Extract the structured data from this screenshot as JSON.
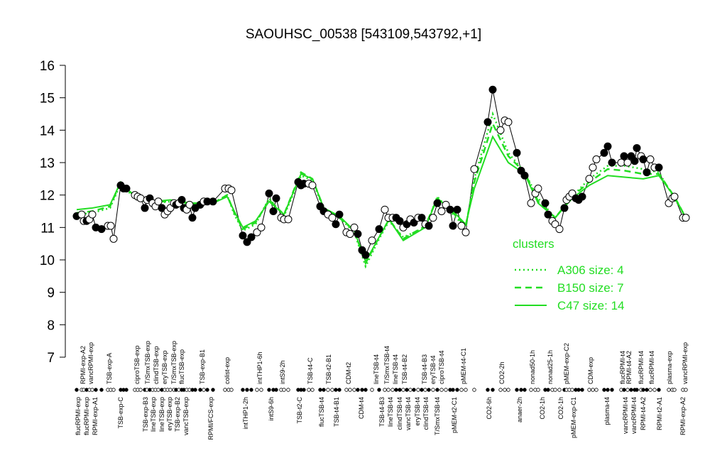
{
  "chart_data": {
    "type": "line",
    "title": "SAOUHSC_00538 [543109,543792,+1]",
    "xlim": [
      100,
      975
    ],
    "ylim": [
      7,
      16
    ],
    "yticks": [
      7,
      8,
      9,
      10,
      11,
      12,
      13,
      14,
      15,
      16
    ],
    "points": {
      "x": [
        108,
        115,
        118,
        122,
        126,
        130,
        135,
        143,
        152,
        156,
        160,
        170,
        174,
        178,
        190,
        194,
        198,
        204,
        207,
        211,
        215,
        219,
        223,
        228,
        232,
        236,
        240,
        245,
        248,
        252,
        256,
        259,
        263,
        267,
        271,
        275,
        282,
        287,
        292,
        300,
        317,
        322,
        326,
        342,
        348,
        354,
        362,
        368,
        379,
        385,
        389,
        396,
        400,
        406,
        420,
        424,
        428,
        435,
        440,
        451,
        456,
        462,
        468,
        473,
        478,
        488,
        493,
        499,
        504,
        510,
        515,
        524,
        534,
        542,
        547,
        553,
        558,
        563,
        568,
        573,
        578,
        583,
        589,
        594,
        599,
        604,
        610,
        616,
        622,
        628,
        634,
        638,
        644,
        650,
        656,
        668,
        687,
        694,
        705,
        711,
        716,
        728,
        734,
        739,
        748,
        754,
        758,
        768,
        772,
        778,
        782,
        788,
        795,
        798,
        802,
        806,
        811,
        815,
        820,
        830,
        835,
        840,
        851,
        856,
        862,
        875,
        879,
        884,
        889,
        894,
        897,
        903,
        906,
        911,
        916,
        922,
        928,
        942,
        947,
        950,
        962,
        966
      ],
      "values": [
        11.35,
        11.4,
        11.2,
        11.2,
        11.25,
        11.4,
        11.0,
        10.95,
        11.05,
        11.05,
        10.65,
        12.3,
        12.2,
        12.2,
        12.0,
        11.95,
        11.9,
        11.6,
        11.85,
        11.9,
        11.75,
        11.65,
        11.8,
        11.6,
        11.4,
        11.5,
        11.6,
        11.75,
        11.7,
        11.75,
        11.85,
        11.6,
        11.55,
        11.7,
        11.3,
        11.6,
        11.7,
        11.8,
        11.8,
        11.8,
        12.2,
        12.2,
        12.15,
        10.75,
        10.55,
        10.7,
        10.85,
        11.0,
        12.05,
        11.5,
        11.9,
        11.3,
        11.25,
        11.25,
        12.4,
        12.3,
        12.35,
        12.35,
        12.3,
        11.65,
        11.5,
        11.4,
        11.3,
        11.1,
        11.4,
        10.85,
        10.8,
        11.0,
        10.8,
        10.3,
        10.15,
        10.6,
        10.95,
        11.55,
        11.3,
        11.3,
        11.3,
        11.2,
        11.0,
        11.1,
        11.25,
        11.15,
        11.3,
        11.3,
        11.1,
        11.05,
        11.3,
        11.75,
        11.5,
        11.7,
        11.55,
        11.05,
        11.55,
        11.05,
        10.85,
        12.8,
        14.25,
        15.25,
        14.0,
        14.3,
        14.25,
        13.3,
        12.75,
        12.6,
        11.75,
        12.05,
        12.2,
        11.75,
        11.4,
        11.2,
        11.1,
        10.95,
        11.6,
        11.85,
        11.95,
        12.05,
        11.9,
        11.85,
        11.95,
        12.5,
        12.85,
        13.1,
        13.3,
        13.5,
        13.0,
        13.0,
        13.2,
        13.0,
        13.2,
        13.05,
        13.45,
        13.2,
        13.1,
        12.7,
        13.1,
        12.85,
        12.85,
        11.75,
        11.9,
        11.95,
        11.3,
        11.3
      ],
      "filled": [
        true,
        false,
        false,
        true,
        false,
        false,
        true,
        true,
        false,
        false,
        false,
        true,
        true,
        true,
        false,
        false,
        false,
        true,
        false,
        true,
        false,
        false,
        false,
        true,
        false,
        false,
        false,
        false,
        true,
        false,
        true,
        true,
        false,
        false,
        true,
        true,
        true,
        false,
        true,
        true,
        false,
        false,
        false,
        true,
        true,
        true,
        false,
        false,
        true,
        true,
        true,
        false,
        false,
        false,
        true,
        true,
        true,
        false,
        false,
        true,
        true,
        false,
        false,
        true,
        true,
        false,
        false,
        false,
        true,
        true,
        true,
        false,
        true,
        false,
        false,
        false,
        true,
        true,
        false,
        true,
        false,
        true,
        false,
        true,
        false,
        true,
        false,
        true,
        false,
        false,
        true,
        true,
        true,
        false,
        false,
        false,
        true,
        true,
        false,
        false,
        false,
        true,
        true,
        true,
        false,
        false,
        false,
        true,
        true,
        false,
        false,
        false,
        true,
        false,
        false,
        false,
        true,
        true,
        true,
        false,
        false,
        false,
        true,
        true,
        true,
        false,
        true,
        false,
        true,
        true,
        true,
        false,
        true,
        true,
        false,
        false,
        true,
        false,
        false,
        false,
        false,
        false
      ]
    },
    "legend_title": "clusters",
    "series": [
      {
        "name": "A306 size: 4",
        "color": "#22dd22",
        "dash": "dotted",
        "x": [
          108,
          130,
          155,
          170,
          190,
          215,
          240,
          270,
          300,
          320,
          330,
          342,
          360,
          379,
          400,
          424,
          440,
          456,
          478,
          499,
          515,
          534,
          548,
          568,
          599,
          616,
          638,
          656,
          668,
          694,
          716,
          739,
          758,
          782,
          806,
          830,
          856,
          880,
          906,
          928,
          950,
          966
        ],
        "values": [
          11.4,
          11.45,
          11.6,
          12.35,
          11.9,
          11.75,
          11.8,
          11.7,
          11.75,
          12.0,
          11.4,
          10.9,
          11.1,
          11.9,
          11.35,
          12.6,
          12.45,
          11.55,
          11.3,
          10.85,
          9.8,
          10.65,
          11.2,
          10.7,
          11.0,
          11.95,
          11.4,
          11.0,
          12.5,
          14.5,
          13.3,
          12.7,
          11.9,
          11.3,
          11.95,
          12.5,
          12.9,
          12.9,
          12.8,
          12.7,
          11.9,
          11.3
        ]
      },
      {
        "name": "B150 size: 7",
        "color": "#22dd22",
        "dash": "dashed",
        "x": [
          108,
          130,
          155,
          170,
          190,
          215,
          240,
          270,
          300,
          320,
          330,
          342,
          360,
          379,
          400,
          424,
          440,
          456,
          478,
          499,
          515,
          534,
          548,
          568,
          599,
          616,
          638,
          656,
          668,
          694,
          716,
          739,
          758,
          782,
          806,
          830,
          856,
          880,
          906,
          928,
          950,
          966
        ],
        "values": [
          11.45,
          11.5,
          11.65,
          12.4,
          11.95,
          11.8,
          11.8,
          11.75,
          11.75,
          12.0,
          11.45,
          10.95,
          11.15,
          11.85,
          11.4,
          12.7,
          12.5,
          11.6,
          11.3,
          10.9,
          9.9,
          10.7,
          11.25,
          10.65,
          11.05,
          11.9,
          11.45,
          11.05,
          12.4,
          14.2,
          13.2,
          12.7,
          11.8,
          11.3,
          11.95,
          12.4,
          12.8,
          12.75,
          12.65,
          12.65,
          11.95,
          11.3
        ]
      },
      {
        "name": "C47 size: 14",
        "color": "#22dd22",
        "dash": "solid",
        "x": [
          108,
          130,
          155,
          170,
          190,
          215,
          240,
          270,
          300,
          320,
          330,
          342,
          360,
          379,
          400,
          424,
          440,
          456,
          478,
          499,
          515,
          534,
          548,
          568,
          599,
          616,
          638,
          656,
          668,
          694,
          716,
          739,
          758,
          782,
          806,
          830,
          856,
          880,
          906,
          928,
          950,
          966
        ],
        "values": [
          11.55,
          11.6,
          11.7,
          12.4,
          11.95,
          11.8,
          11.85,
          11.75,
          11.75,
          11.95,
          11.5,
          11.0,
          11.2,
          11.8,
          11.4,
          12.65,
          12.5,
          11.6,
          11.35,
          10.9,
          9.95,
          10.7,
          11.25,
          10.6,
          11.0,
          11.9,
          11.5,
          11.1,
          12.2,
          13.8,
          13.0,
          12.65,
          11.75,
          11.3,
          11.9,
          12.3,
          12.6,
          12.55,
          12.5,
          12.6,
          11.95,
          11.3
        ]
      }
    ],
    "top_labels": [
      {
        "label": "RPMI-exp-A2",
        "x": 117
      },
      {
        "label": "vancRPMI-exp",
        "x": 128
      },
      {
        "label": "TSB-exp-A",
        "x": 154
      },
      {
        "label": "ciproTSB-exp",
        "x": 193
      },
      {
        "label": "T/SmxTSB-exp",
        "x": 208
      },
      {
        "label": "clindTSB-exp",
        "x": 220
      },
      {
        "label": "eryTSB-exp",
        "x": 232
      },
      {
        "label": "T/SmxTSB-exp",
        "x": 245
      },
      {
        "label": "flucTSB-exp",
        "x": 256
      },
      {
        "label": "TSB-exp-B1",
        "x": 285
      },
      {
        "label": "colist-exp",
        "x": 320
      },
      {
        "label": "intTHP1-6h",
        "x": 366
      },
      {
        "label": "intS9-2h",
        "x": 398
      },
      {
        "label": "TSB-t4-C",
        "x": 437
      },
      {
        "label": "TSB-t2-B1",
        "x": 463
      },
      {
        "label": "CDM-t2",
        "x": 491
      },
      {
        "label": "lineTSB-t4",
        "x": 530
      },
      {
        "label": "T/SmxTSB-t4",
        "x": 545
      },
      {
        "label": "lineTSB-t4",
        "x": 557
      },
      {
        "label": "TSB-t4-B2",
        "x": 570
      },
      {
        "label": "TSB-t4-B3",
        "x": 598
      },
      {
        "label": "eryTSB-t4",
        "x": 610
      },
      {
        "label": "ciproTSB-t4",
        "x": 622
      },
      {
        "label": "pMEM-t4-C1",
        "x": 653
      },
      {
        "label": "CO2-2h",
        "x": 707
      },
      {
        "label": "nonad50-1h",
        "x": 750
      },
      {
        "label": "nonad25-1h",
        "x": 775
      },
      {
        "label": "pMEM-exp-C2",
        "x": 798
      },
      {
        "label": "CDM-exp",
        "x": 832
      },
      {
        "label": "flucRPMI-t4",
        "x": 877
      },
      {
        "label": "RPMI-t4-A2",
        "x": 886
      },
      {
        "label": "flucRPMI-t4",
        "x": 903
      },
      {
        "label": "flucRPMI-t4",
        "x": 918
      },
      {
        "label": "plasma-exp",
        "x": 943
      },
      {
        "label": "vancRPMI-exp",
        "x": 965
      }
    ],
    "bottom_labels": [
      {
        "label": "flucRPMI-exp",
        "x": 110
      },
      {
        "label": "flucRPMI-exp",
        "x": 122
      },
      {
        "label": "RPMI-exp-A1",
        "x": 134
      },
      {
        "label": "TSB-exp-C",
        "x": 170
      },
      {
        "label": "TSB-exp-B3",
        "x": 205
      },
      {
        "label": "lineTSB-exp",
        "x": 216
      },
      {
        "label": "lineTSB-exp",
        "x": 228
      },
      {
        "label": "eryTSB-exp",
        "x": 239
      },
      {
        "label": "TSB-exp-B2",
        "x": 250
      },
      {
        "label": "vancTSB-exp",
        "x": 262
      },
      {
        "label": "RPMI/FCS-exp",
        "x": 297
      },
      {
        "label": "intTHP1-2h",
        "x": 346
      },
      {
        "label": "intS9-6h",
        "x": 382
      },
      {
        "label": "TSB-t2-C",
        "x": 422
      },
      {
        "label": "flucTSB-t4",
        "x": 453
      },
      {
        "label": "TSB-t4-B1",
        "x": 474
      },
      {
        "label": "CDM-t4",
        "x": 509
      },
      {
        "label": "TSB-t4-B3",
        "x": 538
      },
      {
        "label": "lineTSB-t4",
        "x": 550
      },
      {
        "label": "clindTSB-t4",
        "x": 563
      },
      {
        "label": "vancTSB-t4",
        "x": 575
      },
      {
        "label": "eryTSB-t4",
        "x": 588
      },
      {
        "label": "clindTSB-t4",
        "x": 600
      },
      {
        "label": "T/SmxTSB-t4",
        "x": 616
      },
      {
        "label": "pMEM-t2-C1",
        "x": 640
      },
      {
        "label": "CO2-6h",
        "x": 689
      },
      {
        "label": "anaer-2h",
        "x": 732
      },
      {
        "label": "CO2-1h",
        "x": 764
      },
      {
        "label": "CO2-1h",
        "x": 790
      },
      {
        "label": "pMEM-exp-C1",
        "x": 808
      },
      {
        "label": "plasma-t4",
        "x": 855
      },
      {
        "label": "vancRPMI-t4",
        "x": 881
      },
      {
        "label": "vancRPMI-t4",
        "x": 893
      },
      {
        "label": "RPMI-t4-A2",
        "x": 906
      },
      {
        "label": "RPMI-t2-A1",
        "x": 929
      },
      {
        "label": "RPMI-exp-A2",
        "x": 962
      }
    ]
  }
}
